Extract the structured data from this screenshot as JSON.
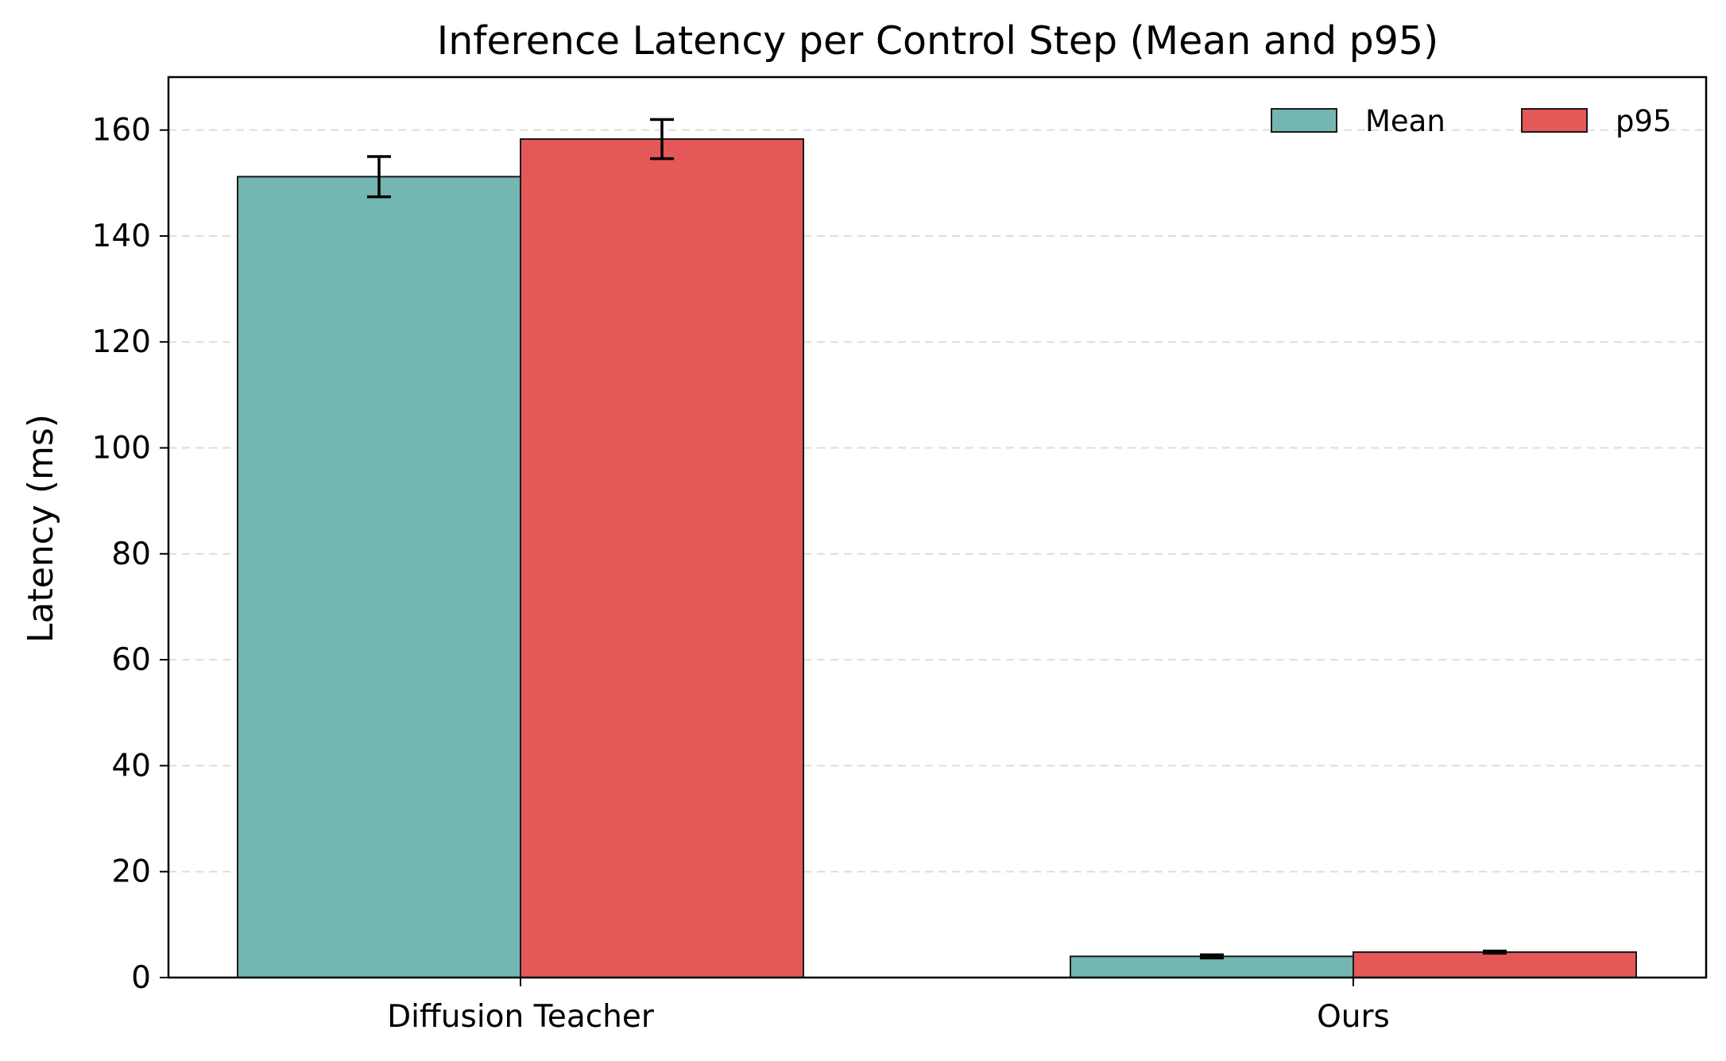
{
  "chart_data": {
    "type": "bar",
    "title": "Inference Latency per Control Step (Mean and p95)",
    "xlabel": "",
    "ylabel": "Latency (ms)",
    "categories": [
      "Diffusion Teacher",
      "Ours"
    ],
    "series": [
      {
        "name": "Mean",
        "color": "#73b6b2",
        "values": [
          151.2,
          4.0
        ],
        "errors": [
          3.8,
          0.3
        ]
      },
      {
        "name": "p95",
        "color": "#e45858",
        "values": [
          158.3,
          4.8
        ],
        "errors": [
          3.7,
          0.2
        ]
      }
    ],
    "ylim": [
      0,
      170
    ],
    "yticks": [
      0,
      20,
      40,
      60,
      80,
      100,
      120,
      140,
      160
    ],
    "grid": "y-dashed",
    "legend_position": "top-right"
  }
}
